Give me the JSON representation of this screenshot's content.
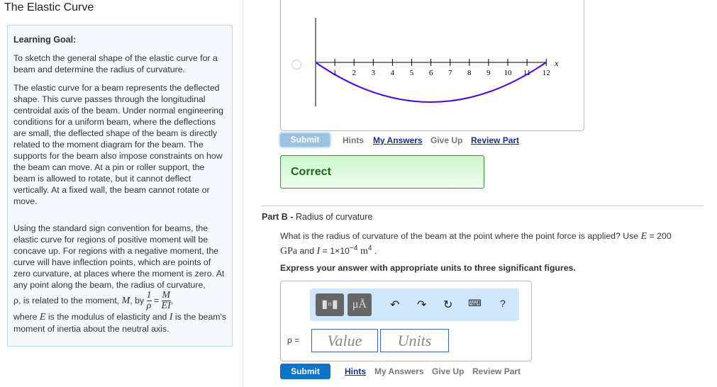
{
  "title": "The Elastic Curve",
  "goal": {
    "heading": "Learning Goal:",
    "p1": "To sketch the general shape of the elastic curve for a beam and determine the radius of curvature.",
    "p2": "The elastic curve for a beam represents the deflected shape. This curve passes through the longitudinal centroidal axis of the beam. Under normal engineering conditions for a uniform beam, where the deflections are small, the deflected shape of the beam is directly related to the moment diagram for the beam. The supports for the beam also impose constraints on how the beam can move. At a pin or roller support, the beam is allowed to rotate, but it cannot deflect vertically. At a fixed wall, the beam cannot rotate or move.",
    "p3a": "Using the standard sign convention for beams, the elastic curve for regions of positive moment will be concave up. For regions with a negative moment, the curve will have inflection points, which are points of zero curvature, at places where the moment is zero. At any point along the beam, the radius of curvature,",
    "p3b": "ρ, is related to the moment,",
    "M": "M",
    "by": ", by",
    "one": "1",
    "rho": "ρ",
    "eq": "=",
    "EI": "EI",
    "p4a": "where",
    "E": "E",
    "p4b": "is the modulus of elasticity and",
    "I": "I",
    "p4c": "is the beam's moment of inertia about the neutral axis."
  },
  "graph": {
    "ticks": [
      "1",
      "2",
      "3",
      "4",
      "5",
      "6",
      "7",
      "8",
      "9",
      "10",
      "11",
      "12"
    ],
    "xlabel": "x",
    "curve_color": "#4a00ff"
  },
  "partA": {
    "submit": "Submit",
    "hints": "Hints",
    "my_answers": "My Answers",
    "give_up": "Give Up",
    "review": "Review Part",
    "status": "Correct"
  },
  "partB": {
    "label": "Part B",
    "sep": " - ",
    "name": "Radius of curvature",
    "q1": "What is the radius of curvature of the beam at the point where the point force is applied? Use",
    "E": "E",
    "q2": "= 200",
    "GPa": "GPa",
    "q3": "and",
    "I": "I",
    "q4": "= 1×10",
    "exp": "−4",
    "m": "m",
    "mexp": "4",
    "dot": ".",
    "express": "Express your answer with appropriate units to three significant figures.",
    "units_btn": "μÅ",
    "help": "?",
    "rho_label": "ρ =",
    "value_ph": "Value",
    "units_ph": "Units",
    "submit": "Submit",
    "hints": "Hints",
    "my_answers": "My Answers",
    "give_up": "Give Up",
    "review": "Review Part"
  }
}
